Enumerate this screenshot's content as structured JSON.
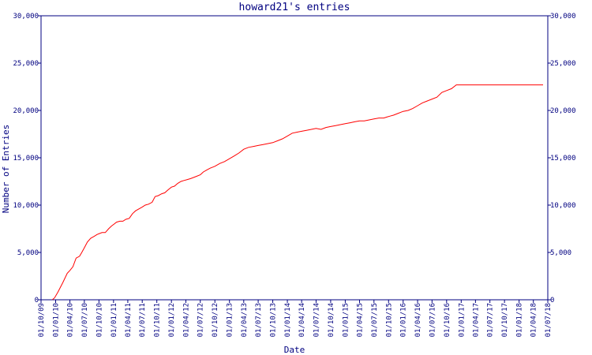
{
  "chart_data": {
    "type": "line",
    "title": "howard21's entries",
    "xlabel": "Date",
    "ylabel": "Number of Entries",
    "ylim": [
      0,
      30000
    ],
    "xlim": [
      "2009-10-01",
      "2018-07-01"
    ],
    "y_ticks": [
      {
        "value": 0,
        "label": "0"
      },
      {
        "value": 5000,
        "label": "5,000"
      },
      {
        "value": 10000,
        "label": "10,000"
      },
      {
        "value": 15000,
        "label": "15,000"
      },
      {
        "value": 20000,
        "label": "20,000"
      },
      {
        "value": 25000,
        "label": "25,000"
      },
      {
        "value": 30000,
        "label": "30,000"
      }
    ],
    "x_ticks": [
      {
        "value": "2009-10-01",
        "label": "01/10/09"
      },
      {
        "value": "2010-01-01",
        "label": "01/01/10"
      },
      {
        "value": "2010-04-01",
        "label": "01/04/10"
      },
      {
        "value": "2010-07-01",
        "label": "01/07/10"
      },
      {
        "value": "2010-10-01",
        "label": "01/10/10"
      },
      {
        "value": "2011-01-01",
        "label": "01/01/11"
      },
      {
        "value": "2011-04-01",
        "label": "01/04/11"
      },
      {
        "value": "2011-07-01",
        "label": "01/07/11"
      },
      {
        "value": "2011-10-01",
        "label": "01/10/11"
      },
      {
        "value": "2012-01-01",
        "label": "01/01/12"
      },
      {
        "value": "2012-04-01",
        "label": "01/04/12"
      },
      {
        "value": "2012-07-01",
        "label": "01/07/12"
      },
      {
        "value": "2012-10-01",
        "label": "01/10/12"
      },
      {
        "value": "2013-01-01",
        "label": "01/01/13"
      },
      {
        "value": "2013-04-01",
        "label": "01/04/13"
      },
      {
        "value": "2013-07-01",
        "label": "01/07/13"
      },
      {
        "value": "2013-10-01",
        "label": "01/10/13"
      },
      {
        "value": "2014-01-01",
        "label": "01/01/14"
      },
      {
        "value": "2014-04-01",
        "label": "01/04/14"
      },
      {
        "value": "2014-07-01",
        "label": "01/07/14"
      },
      {
        "value": "2014-10-01",
        "label": "01/10/14"
      },
      {
        "value": "2015-01-01",
        "label": "01/01/15"
      },
      {
        "value": "2015-04-01",
        "label": "01/04/15"
      },
      {
        "value": "2015-07-01",
        "label": "01/07/15"
      },
      {
        "value": "2015-10-01",
        "label": "01/10/15"
      },
      {
        "value": "2016-01-01",
        "label": "01/01/16"
      },
      {
        "value": "2016-04-01",
        "label": "01/04/16"
      },
      {
        "value": "2016-07-01",
        "label": "01/07/16"
      },
      {
        "value": "2016-10-01",
        "label": "01/10/16"
      },
      {
        "value": "2017-01-01",
        "label": "01/01/17"
      },
      {
        "value": "2017-04-01",
        "label": "01/04/17"
      },
      {
        "value": "2017-07-01",
        "label": "01/07/17"
      },
      {
        "value": "2017-10-01",
        "label": "01/10/17"
      },
      {
        "value": "2018-01-01",
        "label": "01/01/18"
      },
      {
        "value": "2018-04-01",
        "label": "01/04/18"
      },
      {
        "value": "2018-07-01",
        "label": "01/07/18"
      }
    ],
    "grid": false,
    "line_color": "#ff0000",
    "axis_color": "#000080",
    "series": [
      {
        "x": [
          "2009-12-10",
          "2009-12-25",
          "2010-01-15",
          "2010-02-15",
          "2010-03-15",
          "2010-04-01",
          "2010-04-20",
          "2010-05-10",
          "2010-06-01",
          "2010-06-15",
          "2010-07-01",
          "2010-07-20",
          "2010-08-10",
          "2010-09-01",
          "2010-09-20",
          "2010-10-05",
          "2010-10-20",
          "2010-11-10",
          "2010-12-01",
          "2010-12-20",
          "2011-01-05",
          "2011-01-20",
          "2011-02-10",
          "2011-03-01",
          "2011-03-20",
          "2011-04-10",
          "2011-05-01",
          "2011-05-20",
          "2011-06-10",
          "2011-07-01",
          "2011-07-20",
          "2011-08-10",
          "2011-09-01",
          "2011-09-20",
          "2011-10-10",
          "2011-11-01",
          "2011-11-20",
          "2011-12-10",
          "2012-01-01",
          "2012-01-20",
          "2012-02-10",
          "2012-03-01",
          "2012-03-20",
          "2012-04-10",
          "2012-05-01",
          "2012-06-01",
          "2012-07-01",
          "2012-07-20",
          "2012-08-10",
          "2012-09-01",
          "2012-10-01",
          "2012-11-01",
          "2012-12-01",
          "2013-01-01",
          "2013-02-01",
          "2013-03-01",
          "2013-04-01",
          "2013-05-01",
          "2013-06-01",
          "2013-07-01",
          "2013-08-01",
          "2013-09-01",
          "2013-10-01",
          "2013-11-01",
          "2013-12-01",
          "2014-01-01",
          "2014-02-01",
          "2014-03-01",
          "2014-04-01",
          "2014-05-01",
          "2014-06-01",
          "2014-07-01",
          "2014-08-01",
          "2014-09-01",
          "2014-10-01",
          "2014-11-01",
          "2014-12-01",
          "2015-01-01",
          "2015-02-01",
          "2015-03-01",
          "2015-04-01",
          "2015-05-01",
          "2015-06-01",
          "2015-07-01",
          "2015-08-01",
          "2015-09-01",
          "2015-09-20",
          "2015-10-10",
          "2015-11-01",
          "2015-12-01",
          "2016-01-01",
          "2016-02-01",
          "2016-03-01",
          "2016-04-01",
          "2016-05-01",
          "2016-06-01",
          "2016-07-01",
          "2016-08-01",
          "2016-09-01",
          "2016-10-01",
          "2016-11-01",
          "2016-12-01",
          "2017-01-01",
          "2017-02-01",
          "2017-03-01",
          "2017-04-01",
          "2017-05-01",
          "2017-06-01",
          "2017-07-01",
          "2017-08-01",
          "2017-09-01",
          "2017-10-01",
          "2017-11-01",
          "2017-12-01",
          "2018-01-01",
          "2018-02-01",
          "2018-03-01",
          "2018-04-01",
          "2018-05-01",
          "2018-06-01"
        ],
        "y": [
          0,
          200,
          800,
          1800,
          2800,
          3100,
          3500,
          4400,
          4600,
          5000,
          5500,
          6100,
          6500,
          6700,
          6900,
          7000,
          7100,
          7100,
          7500,
          7800,
          8000,
          8200,
          8300,
          8300,
          8500,
          8600,
          9100,
          9400,
          9600,
          9800,
          10000,
          10100,
          10300,
          10900,
          11000,
          11200,
          11300,
          11600,
          11900,
          12000,
          12300,
          12500,
          12600,
          12700,
          12800,
          13000,
          13200,
          13500,
          13700,
          13900,
          14100,
          14400,
          14600,
          14900,
          15200,
          15500,
          15900,
          16100,
          16200,
          16300,
          16400,
          16500,
          16600,
          16800,
          17000,
          17300,
          17600,
          17700,
          17800,
          17900,
          18000,
          18100,
          18000,
          18200,
          18300,
          18400,
          18500,
          18600,
          18700,
          18800,
          18900,
          18900,
          19000,
          19100,
          19200,
          19200,
          19300,
          19400,
          19500,
          19700,
          19900,
          20000,
          20200,
          20500,
          20800,
          21000,
          21200,
          21400,
          21900,
          22100,
          22300,
          22700,
          22700,
          22700,
          22700,
          22700,
          22700,
          22700,
          22700,
          22700,
          22700,
          22700,
          22700,
          22700,
          22700,
          22700,
          22700,
          22700,
          22700,
          22700
        ]
      }
    ]
  }
}
